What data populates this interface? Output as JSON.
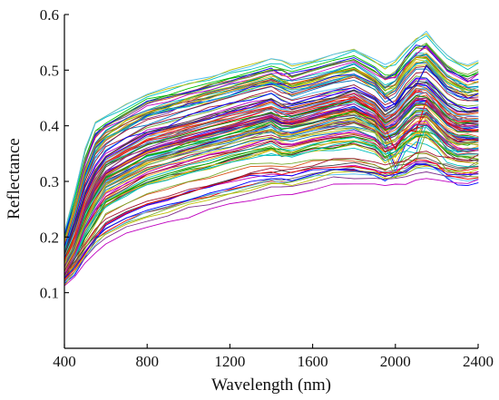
{
  "chart_data": {
    "type": "line",
    "xlabel": "Wavelength (nm)",
    "ylabel": "Reflectance",
    "xlim": [
      400,
      2400
    ],
    "ylim": [
      0.0,
      0.6
    ],
    "xticks": [
      400,
      800,
      1200,
      1600,
      2000,
      2400
    ],
    "yticks": [
      0.1,
      0.2,
      0.3,
      0.4,
      0.5,
      0.6
    ],
    "ytick_labels": [
      "0.1",
      "0.2",
      "0.3",
      "0.4",
      "0.5",
      "0.6"
    ],
    "grid": false,
    "legend": "none",
    "curve_count": 120,
    "colors": [
      "#0072bd",
      "#d95319",
      "#edb120",
      "#7e2f8e",
      "#77ac30",
      "#4dbeee",
      "#a2142f",
      "#0000ff",
      "#00a000",
      "#ff0000",
      "#00bfbf",
      "#bf00bf",
      "#bfbf00",
      "#404040"
    ],
    "x": [
      400,
      450,
      500,
      550,
      600,
      700,
      800,
      900,
      1000,
      1100,
      1200,
      1300,
      1400,
      1450,
      1500,
      1600,
      1700,
      1800,
      1900,
      1950,
      2000,
      2050,
      2100,
      2150,
      2200,
      2250,
      2300,
      2350,
      2400
    ],
    "series": [
      {
        "color": "#00a070",
        "values": [
          0.2,
          0.27,
          0.35,
          0.4,
          0.41,
          0.43,
          0.45,
          0.46,
          0.47,
          0.48,
          0.49,
          0.5,
          0.51,
          0.51,
          0.5,
          0.51,
          0.52,
          0.53,
          0.51,
          0.5,
          0.51,
          0.53,
          0.55,
          0.56,
          0.54,
          0.52,
          0.51,
          0.5,
          0.51
        ]
      },
      {
        "color": "#0072bd",
        "values": [
          0.19,
          0.25,
          0.32,
          0.37,
          0.39,
          0.41,
          0.43,
          0.44,
          0.45,
          0.46,
          0.47,
          0.48,
          0.49,
          0.48,
          0.48,
          0.49,
          0.5,
          0.51,
          0.49,
          0.47,
          0.48,
          0.51,
          0.53,
          0.53,
          0.51,
          0.49,
          0.48,
          0.47,
          0.47
        ]
      },
      {
        "color": "#d95319",
        "values": [
          0.18,
          0.24,
          0.31,
          0.35,
          0.37,
          0.4,
          0.41,
          0.42,
          0.44,
          0.45,
          0.46,
          0.47,
          0.48,
          0.47,
          0.46,
          0.47,
          0.48,
          0.49,
          0.47,
          0.45,
          0.46,
          0.49,
          0.51,
          0.51,
          0.49,
          0.47,
          0.46,
          0.45,
          0.45
        ]
      },
      {
        "color": "#77ac30",
        "values": [
          0.17,
          0.22,
          0.29,
          0.33,
          0.36,
          0.38,
          0.4,
          0.41,
          0.42,
          0.43,
          0.44,
          0.45,
          0.46,
          0.45,
          0.44,
          0.45,
          0.46,
          0.47,
          0.45,
          0.43,
          0.44,
          0.47,
          0.49,
          0.49,
          0.47,
          0.45,
          0.44,
          0.44,
          0.44
        ]
      },
      {
        "color": "#4dbeee",
        "values": [
          0.16,
          0.21,
          0.27,
          0.31,
          0.34,
          0.36,
          0.38,
          0.39,
          0.4,
          0.41,
          0.42,
          0.43,
          0.44,
          0.43,
          0.43,
          0.44,
          0.45,
          0.46,
          0.44,
          0.42,
          0.43,
          0.45,
          0.47,
          0.47,
          0.45,
          0.43,
          0.42,
          0.42,
          0.42
        ]
      },
      {
        "color": "#7e2f8e",
        "values": [
          0.15,
          0.19,
          0.25,
          0.29,
          0.32,
          0.34,
          0.36,
          0.37,
          0.38,
          0.39,
          0.4,
          0.41,
          0.42,
          0.41,
          0.41,
          0.42,
          0.43,
          0.44,
          0.42,
          0.4,
          0.41,
          0.43,
          0.45,
          0.45,
          0.43,
          0.41,
          0.4,
          0.4,
          0.4
        ]
      },
      {
        "color": "#edb120",
        "values": [
          0.15,
          0.18,
          0.23,
          0.27,
          0.3,
          0.32,
          0.34,
          0.35,
          0.36,
          0.37,
          0.38,
          0.39,
          0.4,
          0.39,
          0.39,
          0.4,
          0.41,
          0.42,
          0.4,
          0.38,
          0.39,
          0.41,
          0.43,
          0.43,
          0.41,
          0.39,
          0.38,
          0.38,
          0.38
        ]
      },
      {
        "color": "#0000ff",
        "values": [
          0.14,
          0.17,
          0.22,
          0.25,
          0.28,
          0.3,
          0.32,
          0.33,
          0.34,
          0.35,
          0.36,
          0.37,
          0.38,
          0.37,
          0.37,
          0.38,
          0.39,
          0.39,
          0.38,
          0.36,
          0.37,
          0.39,
          0.41,
          0.41,
          0.39,
          0.37,
          0.36,
          0.36,
          0.36
        ]
      },
      {
        "color": "#a2142f",
        "values": [
          0.13,
          0.16,
          0.2,
          0.23,
          0.26,
          0.28,
          0.3,
          0.31,
          0.32,
          0.33,
          0.34,
          0.35,
          0.36,
          0.35,
          0.35,
          0.36,
          0.36,
          0.37,
          0.36,
          0.34,
          0.35,
          0.37,
          0.38,
          0.38,
          0.37,
          0.35,
          0.34,
          0.34,
          0.34
        ]
      },
      {
        "color": "#00c000",
        "values": [
          0.14,
          0.18,
          0.24,
          0.28,
          0.31,
          0.33,
          0.35,
          0.36,
          0.37,
          0.38,
          0.39,
          0.4,
          0.41,
          0.4,
          0.4,
          0.41,
          0.42,
          0.42,
          0.4,
          0.36,
          0.3,
          0.34,
          0.33,
          0.4,
          0.38,
          0.36,
          0.35,
          0.35,
          0.35
        ]
      },
      {
        "color": "#707070",
        "values": [
          0.12,
          0.14,
          0.16,
          0.18,
          0.19,
          0.21,
          0.22,
          0.23,
          0.24,
          0.25,
          0.26,
          0.27,
          0.28,
          0.28,
          0.28,
          0.29,
          0.3,
          0.3,
          0.3,
          0.3,
          0.3,
          0.3,
          0.31,
          0.31,
          0.31,
          0.31,
          0.31,
          0.31,
          0.32
        ]
      },
      {
        "color": "#bf00bf",
        "values": [
          0.13,
          0.15,
          0.18,
          0.21,
          0.24,
          0.26,
          0.28,
          0.29,
          0.3,
          0.31,
          0.32,
          0.33,
          0.33,
          0.33,
          0.33,
          0.34,
          0.34,
          0.34,
          0.33,
          0.32,
          0.33,
          0.34,
          0.35,
          0.35,
          0.34,
          0.32,
          0.31,
          0.31,
          0.31
        ]
      }
    ]
  }
}
